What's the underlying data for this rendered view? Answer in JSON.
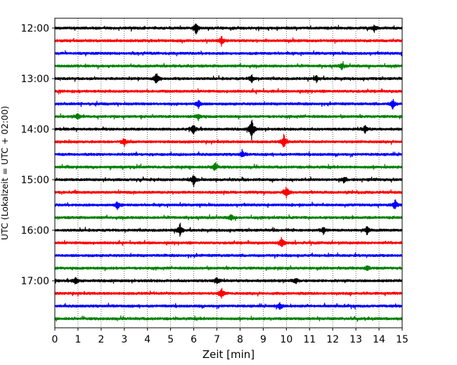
{
  "chart_data": {
    "type": "line",
    "title": "",
    "xlabel": "Zeit  [min]",
    "ylabel": "UTC (Lokalzeit = UTC + 02:00)",
    "xlim": [
      0,
      15
    ],
    "x_ticks": [
      0,
      1,
      2,
      3,
      4,
      5,
      6,
      7,
      8,
      9,
      10,
      11,
      12,
      13,
      14,
      15
    ],
    "x_tick_labels": [
      "0",
      "1",
      "2",
      "3",
      "4",
      "5",
      "6",
      "7",
      "8",
      "9",
      "10",
      "11",
      "12",
      "13",
      "14",
      "15"
    ],
    "y_tick_labels": [
      "12:00",
      "13:00",
      "14:00",
      "15:00",
      "16:00",
      "17:00"
    ],
    "grid": "vertical dotted lines at each minute",
    "trace_interval_min": 15,
    "trace_colors": [
      "#000000",
      "#ff0000",
      "#0000ff",
      "#008000"
    ],
    "traces": [
      {
        "start": "12:00",
        "color": "#000000",
        "events": [
          [
            6.1,
            1.0
          ],
          [
            13.8,
            0.6
          ]
        ]
      },
      {
        "start": "12:15",
        "color": "#ff0000",
        "events": [
          [
            7.2,
            0.7
          ]
        ]
      },
      {
        "start": "12:30",
        "color": "#0000ff",
        "events": []
      },
      {
        "start": "12:45",
        "color": "#008000",
        "events": [
          [
            12.4,
            0.5
          ]
        ]
      },
      {
        "start": "13:00",
        "color": "#000000",
        "events": [
          [
            4.4,
            1.0
          ],
          [
            8.5,
            0.6
          ],
          [
            11.3,
            0.5
          ]
        ]
      },
      {
        "start": "13:15",
        "color": "#ff0000",
        "events": []
      },
      {
        "start": "13:30",
        "color": "#0000ff",
        "events": [
          [
            6.2,
            0.7
          ],
          [
            14.6,
            0.8
          ]
        ]
      },
      {
        "start": "13:45",
        "color": "#008000",
        "events": [
          [
            1.0,
            0.5
          ],
          [
            6.2,
            0.5
          ]
        ]
      },
      {
        "start": "14:00",
        "color": "#000000",
        "events": [
          [
            6.0,
            0.8
          ],
          [
            8.5,
            1.8
          ],
          [
            13.4,
            0.6
          ]
        ]
      },
      {
        "start": "14:15",
        "color": "#ff0000",
        "events": [
          [
            3.0,
            0.6
          ],
          [
            9.9,
            1.1
          ]
        ]
      },
      {
        "start": "14:30",
        "color": "#0000ff",
        "events": [
          [
            8.1,
            0.5
          ]
        ]
      },
      {
        "start": "14:45",
        "color": "#008000",
        "events": [
          [
            6.9,
            0.7
          ]
        ]
      },
      {
        "start": "15:00",
        "color": "#000000",
        "events": [
          [
            6.0,
            0.9
          ],
          [
            12.5,
            0.6
          ]
        ]
      },
      {
        "start": "15:15",
        "color": "#ff0000",
        "events": [
          [
            10.0,
            1.0
          ]
        ]
      },
      {
        "start": "15:30",
        "color": "#0000ff",
        "events": [
          [
            2.7,
            0.6
          ],
          [
            14.7,
            0.8
          ]
        ]
      },
      {
        "start": "15:45",
        "color": "#008000",
        "events": [
          [
            7.6,
            0.5
          ]
        ]
      },
      {
        "start": "16:00",
        "color": "#000000",
        "events": [
          [
            5.4,
            1.0
          ],
          [
            11.6,
            0.5
          ],
          [
            13.5,
            0.8
          ]
        ]
      },
      {
        "start": "16:15",
        "color": "#ff0000",
        "events": [
          [
            9.8,
            0.9
          ]
        ]
      },
      {
        "start": "16:30",
        "color": "#0000ff",
        "events": []
      },
      {
        "start": "16:45",
        "color": "#008000",
        "events": [
          [
            13.5,
            0.4
          ]
        ]
      },
      {
        "start": "17:00",
        "color": "#000000",
        "events": [
          [
            0.9,
            0.6
          ],
          [
            7.0,
            0.6
          ],
          [
            10.4,
            0.5
          ]
        ]
      },
      {
        "start": "17:15",
        "color": "#ff0000",
        "events": [
          [
            7.2,
            0.9
          ]
        ]
      },
      {
        "start": "17:30",
        "color": "#0000ff",
        "events": [
          [
            9.7,
            0.5
          ]
        ]
      },
      {
        "start": "17:45",
        "color": "#008000",
        "events": []
      }
    ]
  }
}
